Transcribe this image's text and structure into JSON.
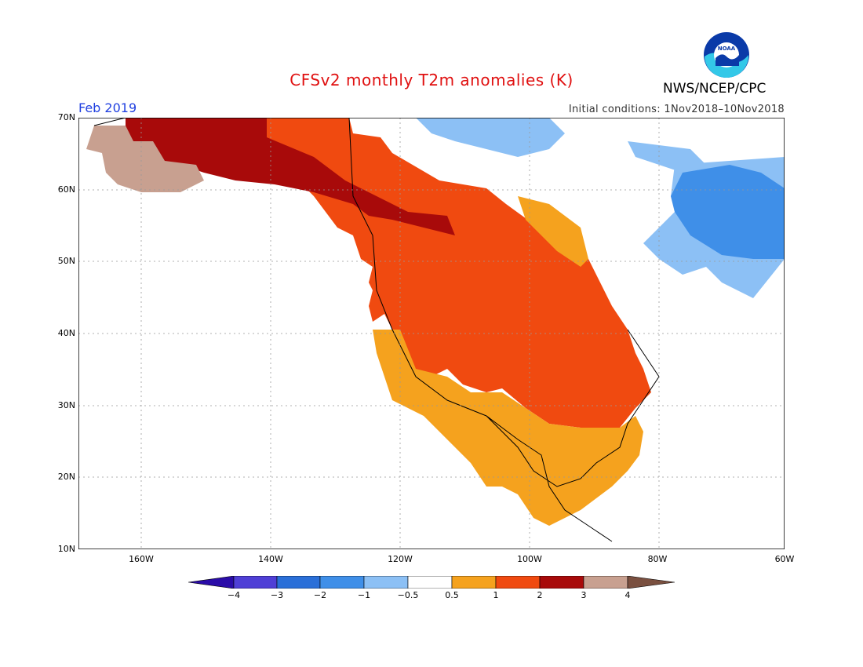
{
  "header": {
    "title": "CFSv2 monthly T2m anomalies (K)",
    "month": "Feb 2019",
    "initial_conditions": "Initial conditions: 1Nov2018–10Nov2018",
    "agency": "NWS/NCEP/CPC",
    "logo_text": "NOAA"
  },
  "axes": {
    "lat_labels": [
      "70N",
      "60N",
      "50N",
      "40N",
      "30N",
      "20N",
      "10N"
    ],
    "lon_labels": [
      "160W",
      "140W",
      "120W",
      "100W",
      "80W",
      "60W"
    ]
  },
  "colorbar": {
    "labels": [
      "−4",
      "−3",
      "−2",
      "−1",
      "−0.5",
      "0.5",
      "1",
      "2",
      "3",
      "4"
    ],
    "colors": [
      "#2a0ca8",
      "#4f3fd6",
      "#2a6fd8",
      "#3f8fe8",
      "#8cc0f5",
      "#ffffff",
      "#f5a21e",
      "#f04a10",
      "#a80a0a",
      "#c8a090",
      "#7a5040"
    ]
  },
  "colors": {
    "land_warm_1": "#f5a21e",
    "land_warm_2": "#f04a10",
    "land_warm_3": "#a80a0a",
    "land_warm_4": "#c8a090",
    "cool_1": "#8cc0f5",
    "cool_2": "#3f8fe8"
  }
}
